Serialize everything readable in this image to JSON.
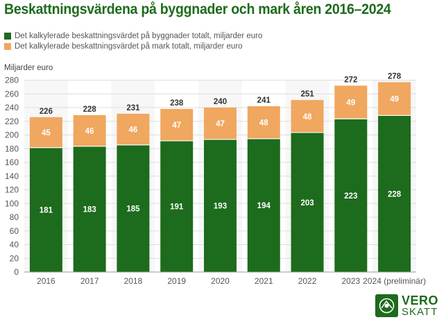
{
  "chart_data": {
    "type": "bar",
    "stacked": true,
    "title": "Beskattningsvärdena på byggnader och mark åren 2016–2024",
    "ylabel": "Miljarder euro",
    "xlabel": "",
    "ylim": [
      0,
      280
    ],
    "ytick_step": 20,
    "yticks": [
      "0",
      "20",
      "40",
      "60",
      "80",
      "100",
      "120",
      "140",
      "160",
      "180",
      "200",
      "220",
      "240",
      "260",
      "280"
    ],
    "categories": [
      "2016",
      "2017",
      "2018",
      "2019",
      "2020",
      "2021",
      "2022",
      "2023",
      "2024 (preliminär)"
    ],
    "series": [
      {
        "name": "Det kalkylerade beskattningsvärdet på byggnader totalt, miljarder euro",
        "color": "#1d6b1d",
        "values": [
          181,
          183,
          185,
          191,
          193,
          194,
          203,
          223,
          228
        ]
      },
      {
        "name": "Det kalkylerade beskattningsvärdet på mark totalt, miljarder euro",
        "color": "#f0a75f",
        "values": [
          45,
          46,
          46,
          47,
          47,
          48,
          48,
          49,
          49
        ]
      }
    ],
    "totals": [
      226,
      228,
      231,
      238,
      240,
      241,
      251,
      272,
      278
    ],
    "grid": true,
    "legend_position": "top-left"
  },
  "logo": {
    "line1": "VERO",
    "line2": "SKATT"
  }
}
